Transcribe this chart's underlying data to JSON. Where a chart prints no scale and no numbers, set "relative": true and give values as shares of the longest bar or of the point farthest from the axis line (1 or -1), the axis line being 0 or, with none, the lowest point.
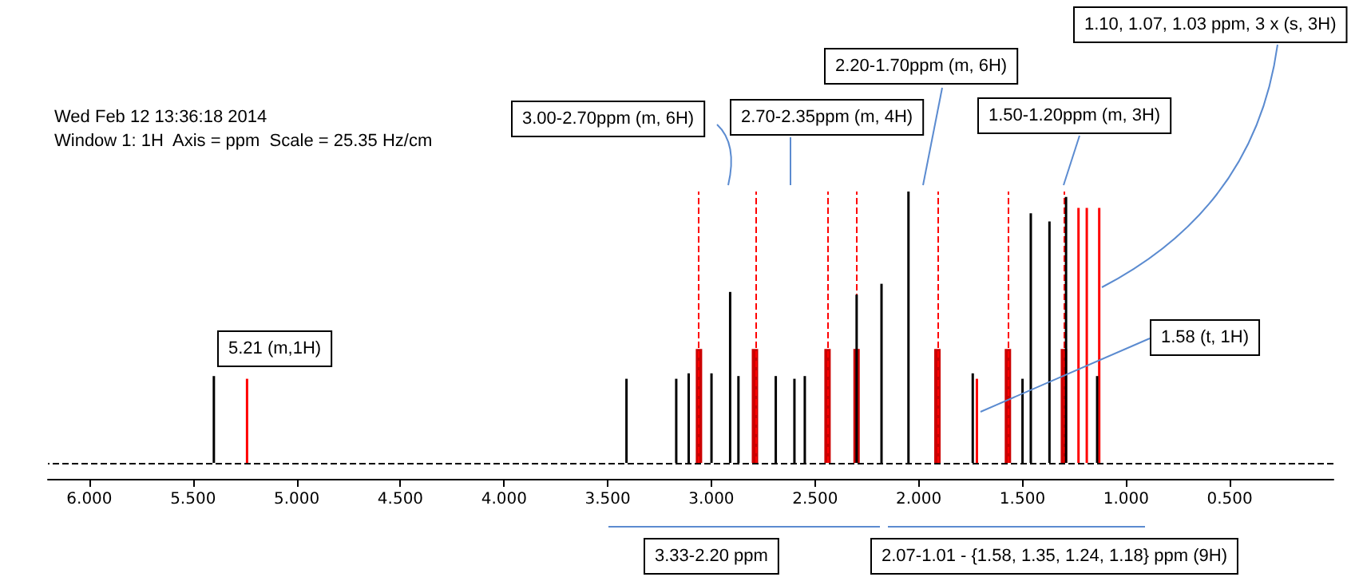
{
  "chart_data": {
    "type": "bar",
    "relative": true,
    "xlim": [
      6.2,
      0.0
    ],
    "xticks": [
      {
        "value": 6,
        "label": "6.000"
      },
      {
        "value": 5.5,
        "label": "5.500"
      },
      {
        "value": 5,
        "label": "5.000"
      },
      {
        "value": 4.5,
        "label": "4.500"
      },
      {
        "value": 4,
        "label": "4.000"
      },
      {
        "value": 3.5,
        "label": "3.500"
      },
      {
        "value": 3,
        "label": "3.000"
      },
      {
        "value": 2.5,
        "label": "2.500"
      },
      {
        "value": 2,
        "label": "2.000"
      },
      {
        "value": 1.5,
        "label": "1.500"
      },
      {
        "value": 1,
        "label": "1.000"
      },
      {
        "value": 0.5,
        "label": "0.500"
      }
    ],
    "series": [
      {
        "color": "#000000",
        "x": [
          5.39,
          3.4,
          3.16,
          3.1,
          2.99,
          2.9,
          2.86,
          2.68,
          2.59,
          2.54,
          2.29,
          2.17,
          2.04,
          1.73,
          1.49,
          1.45,
          1.36,
          1.28,
          1.13
        ],
        "values": [
          0.32,
          0.31,
          0.31,
          0.33,
          0.33,
          0.63,
          0.32,
          0.32,
          0.31,
          0.32,
          0.62,
          0.66,
          1.0,
          0.33,
          0.31,
          0.92,
          0.89,
          0.98,
          0.32
        ]
      },
      {
        "color": "#ff0000",
        "x": [
          5.23,
          1.71,
          1.22,
          1.18,
          1.12
        ],
        "values": [
          0.31,
          0.31,
          0.94,
          0.94,
          0.94
        ]
      },
      {
        "color": "#cc0000",
        "x": [
          3.06,
          2.79,
          2.44,
          2.3,
          1.91,
          1.57,
          1.3
        ],
        "values": [
          0.42,
          0.42,
          0.42,
          0.42,
          0.42,
          0.42,
          0.42
        ]
      }
    ],
    "ref_lines": [
      {
        "axis": "y",
        "value": 0,
        "color": "#000000",
        "line_style": "dashed"
      },
      {
        "axis": "x",
        "value": 3.06,
        "color": "#ff0000",
        "line_style": "dashed"
      },
      {
        "axis": "x",
        "value": 2.79,
        "color": "#ff0000",
        "line_style": "dashed"
      },
      {
        "axis": "x",
        "value": 2.44,
        "color": "#ff0000",
        "line_style": "dashed"
      },
      {
        "axis": "x",
        "value": 2.3,
        "color": "#ff0000",
        "line_style": "dashed"
      },
      {
        "axis": "x",
        "value": 1.91,
        "color": "#ff0000",
        "line_style": "dashed"
      },
      {
        "axis": "x",
        "value": 1.57,
        "color": "#ff0000",
        "line_style": "dashed"
      },
      {
        "axis": "x",
        "value": 1.3,
        "color": "#ff0000",
        "line_style": "dashed"
      }
    ],
    "annotations": [
      "Wed Feb 12 13:36:18 2014",
      "Window 1: 1H  Axis = ppm  Scale = 25.35 Hz/cm",
      "5.21 (m,1H)",
      "3.00-2.70ppm (m, 6H)",
      "2.70-2.35ppm (m, 4H)",
      "2.20-1.70ppm (m, 6H)",
      "1.50-1.20ppm (m, 3H)",
      "1.10, 1.07, 1.03 ppm, 3 x (s, 3H)",
      "1.58 (t, 1H)",
      "3.33-2.20 ppm",
      "2.07-1.01 - {1.58, 1.35, 1.24, 1.18} ppm (9H)"
    ]
  }
}
